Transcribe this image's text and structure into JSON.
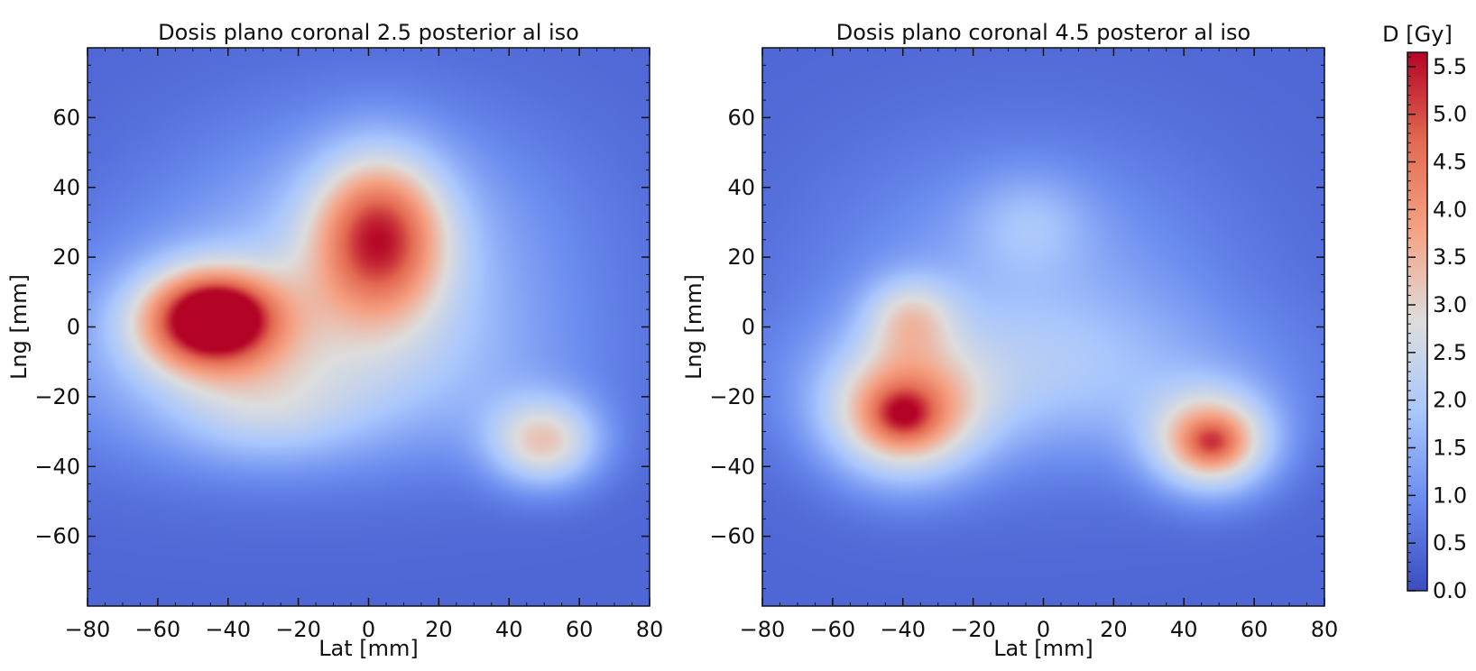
{
  "chart_data": [
    {
      "type": "heatmap",
      "title": "Dosis plano coronal 2.5 posterior al iso",
      "xlabel": "Lat [mm]",
      "ylabel": "Lng [mm]",
      "xlim": [
        -80,
        80
      ],
      "ylim": [
        -80,
        80
      ],
      "xticks": [
        "−80",
        "−60",
        "−40",
        "−20",
        "0",
        "20",
        "40",
        "60",
        "80"
      ],
      "yticks": [
        "−60",
        "−40",
        "−20",
        "0",
        "20",
        "40",
        "60"
      ],
      "xtick_values": [
        -80,
        -60,
        -40,
        -20,
        0,
        20,
        40,
        60,
        80
      ],
      "ytick_values": [
        -60,
        -40,
        -20,
        0,
        20,
        40,
        60
      ],
      "units": "Gy",
      "background_dose": 0.4,
      "dose_regions": [
        {
          "x": 0,
          "y": 20,
          "sx": 40,
          "sy": 28,
          "dose": 1.4
        },
        {
          "x": -10,
          "y": -15,
          "sx": 45,
          "sy": 18,
          "dose": 1.0
        },
        {
          "x": -55,
          "y": -5,
          "sx": 35,
          "sy": 22,
          "dose": 0.6
        },
        {
          "x": -45,
          "y": 2,
          "sx": 14,
          "sy": 10,
          "dose": 4.8
        },
        {
          "x": -42,
          "y": 3,
          "sx": 7,
          "sy": 5,
          "dose": 1.2
        },
        {
          "x": 3,
          "y": 26,
          "sx": 13,
          "sy": 16,
          "dose": 3.7
        },
        {
          "x": 50,
          "y": -33,
          "sx": 11,
          "sy": 9,
          "dose": 2.5
        },
        {
          "x": -30,
          "y": -25,
          "sx": 18,
          "sy": 10,
          "dose": 0.8
        }
      ]
    },
    {
      "type": "heatmap",
      "title": "Dosis plano coronal 4.5 posteror al iso",
      "xlabel": "Lat [mm]",
      "ylabel": "Lng [mm]",
      "xlim": [
        -80,
        80
      ],
      "ylim": [
        -80,
        80
      ],
      "xticks": [
        "−80",
        "−60",
        "−40",
        "−20",
        "0",
        "20",
        "40",
        "60",
        "80"
      ],
      "yticks": [
        "−60",
        "−40",
        "−20",
        "0",
        "20",
        "40",
        "60"
      ],
      "xtick_values": [
        -80,
        -60,
        -40,
        -20,
        0,
        20,
        40,
        60,
        80
      ],
      "ytick_values": [
        -60,
        -40,
        -20,
        0,
        20,
        40,
        60
      ],
      "units": "Gy",
      "background_dose": 0.4,
      "dose_regions": [
        {
          "x": -5,
          "y": 10,
          "sx": 40,
          "sy": 30,
          "dose": 1.0
        },
        {
          "x": 0,
          "y": -15,
          "sx": 50,
          "sy": 16,
          "dose": 0.9
        },
        {
          "x": -4,
          "y": 30,
          "sx": 12,
          "sy": 10,
          "dose": 0.7
        },
        {
          "x": -38,
          "y": 3,
          "sx": 9,
          "sy": 8,
          "dose": 1.6
        },
        {
          "x": -40,
          "y": -25,
          "sx": 15,
          "sy": 13,
          "dose": 3.3
        },
        {
          "x": -40,
          "y": -25,
          "sx": 6,
          "sy": 5,
          "dose": 1.3
        },
        {
          "x": 48,
          "y": -33,
          "sx": 12,
          "sy": 10,
          "dose": 3.4
        },
        {
          "x": 48,
          "y": -33,
          "sx": 5,
          "sy": 4,
          "dose": 1.0
        }
      ]
    }
  ],
  "colorbar": {
    "label": "D [Gy]",
    "min": 0.0,
    "max": 5.65,
    "ticks": [
      "0.0",
      "0.5",
      "1.0",
      "1.5",
      "2.0",
      "2.5",
      "3.0",
      "3.5",
      "4.0",
      "4.5",
      "5.0",
      "5.5"
    ],
    "tick_values": [
      0.0,
      0.5,
      1.0,
      1.5,
      2.0,
      2.5,
      3.0,
      3.5,
      4.0,
      4.5,
      5.0,
      5.5
    ],
    "colormap": "coolwarm",
    "colors": [
      "#3b4cc0",
      "#6a8bef",
      "#aac7fd",
      "#dddddd",
      "#f6a385",
      "#e36b52",
      "#b40426"
    ]
  }
}
